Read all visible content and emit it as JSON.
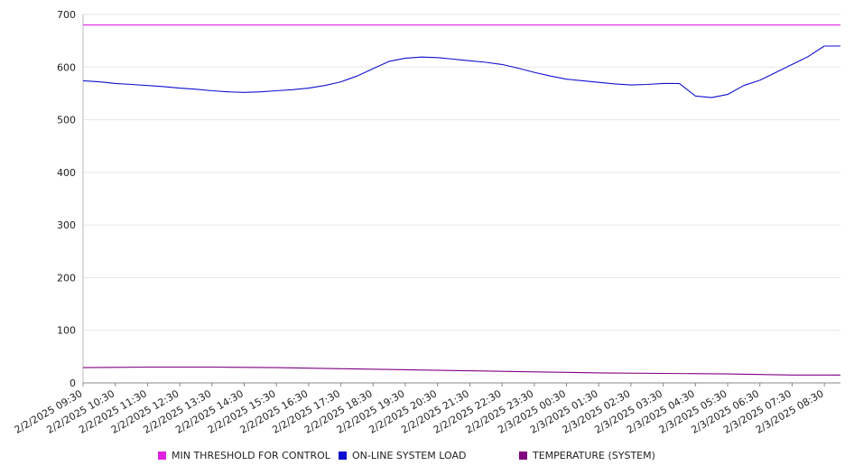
{
  "chart_data": {
    "type": "line",
    "ylim": [
      0,
      700
    ],
    "y_ticks": [
      "0",
      "100",
      "200",
      "300",
      "400",
      "500",
      "600",
      "700"
    ],
    "x_tick_labels": [
      "2/2/2025 09:30",
      "2/2/2025 10:30",
      "2/2/2025 11:30",
      "2/2/2025 12:30",
      "2/2/2025 13:30",
      "2/2/2025 14:30",
      "2/2/2025 15:30",
      "2/2/2025 16:30",
      "2/2/2025 17:30",
      "2/2/2025 18:30",
      "2/2/2025 19:30",
      "2/2/2025 20:30",
      "2/2/2025 21:30",
      "2/2/2025 22:30",
      "2/2/2025 23:30",
      "2/3/2025 00:30",
      "2/3/2025 01:30",
      "2/3/2025 02:30",
      "2/3/2025 03:30",
      "2/3/2025 04:30",
      "2/3/2025 05:30",
      "2/3/2025 06:30",
      "2/3/2025 07:30",
      "2/3/2025 08:30"
    ],
    "grid": true,
    "legend_position": "bottom",
    "series": [
      {
        "name": "MIN THRESHOLD FOR CONTROL",
        "color": "#e020e0",
        "x": [
          "2/2/2025 09:30",
          "2/3/2025 08:30"
        ],
        "y": [
          680,
          680
        ]
      },
      {
        "name": "ON-LINE SYSTEM LOAD",
        "color": "#1010d0",
        "x": [
          "2/2/2025 09:30",
          "2/2/2025 10:00",
          "2/2/2025 10:30",
          "2/2/2025 11:00",
          "2/2/2025 11:30",
          "2/2/2025 12:00",
          "2/2/2025 12:30",
          "2/2/2025 13:00",
          "2/2/2025 13:30",
          "2/2/2025 14:00",
          "2/2/2025 14:30",
          "2/2/2025 15:00",
          "2/2/2025 15:30",
          "2/2/2025 16:00",
          "2/2/2025 16:30",
          "2/2/2025 17:00",
          "2/2/2025 17:30",
          "2/2/2025 18:00",
          "2/2/2025 18:30",
          "2/2/2025 19:00",
          "2/2/2025 19:30",
          "2/2/2025 20:00",
          "2/2/2025 20:30",
          "2/2/2025 21:00",
          "2/2/2025 21:30",
          "2/2/2025 22:00",
          "2/2/2025 22:30",
          "2/2/2025 23:00",
          "2/2/2025 23:30",
          "2/3/2025 00:00",
          "2/3/2025 00:30",
          "2/3/2025 01:00",
          "2/3/2025 01:30",
          "2/3/2025 02:00",
          "2/3/2025 02:30",
          "2/3/2025 03:00",
          "2/3/2025 03:30",
          "2/3/2025 04:00",
          "2/3/2025 04:30",
          "2/3/2025 05:00",
          "2/3/2025 05:30",
          "2/3/2025 06:00",
          "2/3/2025 06:30",
          "2/3/2025 07:00",
          "2/3/2025 07:30",
          "2/3/2025 08:00",
          "2/3/2025 08:30"
        ],
        "y": [
          574,
          572,
          569,
          567,
          565,
          563,
          560,
          558,
          555,
          553,
          552,
          553,
          555,
          557,
          560,
          565,
          572,
          583,
          597,
          611,
          617,
          619,
          618,
          615,
          612,
          609,
          605,
          598,
          590,
          583,
          577,
          574,
          571,
          568,
          566,
          567,
          569,
          569,
          545,
          542,
          548,
          565,
          575,
          590,
          605,
          620,
          640
        ]
      },
      {
        "name": "TEMPERATURE (SYSTEM)",
        "color": "#800080",
        "x": [
          "2/2/2025 09:30",
          "2/2/2025 11:30",
          "2/2/2025 13:30",
          "2/2/2025 15:30",
          "2/2/2025 17:30",
          "2/2/2025 19:30",
          "2/2/2025 21:30",
          "2/2/2025 23:30",
          "2/3/2025 01:30",
          "2/3/2025 03:30",
          "2/3/2025 05:30",
          "2/3/2025 07:30",
          "2/3/2025 08:30"
        ],
        "y": [
          29,
          30,
          30,
          29,
          27,
          25,
          23,
          21,
          19,
          18,
          17,
          15,
          15
        ]
      }
    ]
  }
}
